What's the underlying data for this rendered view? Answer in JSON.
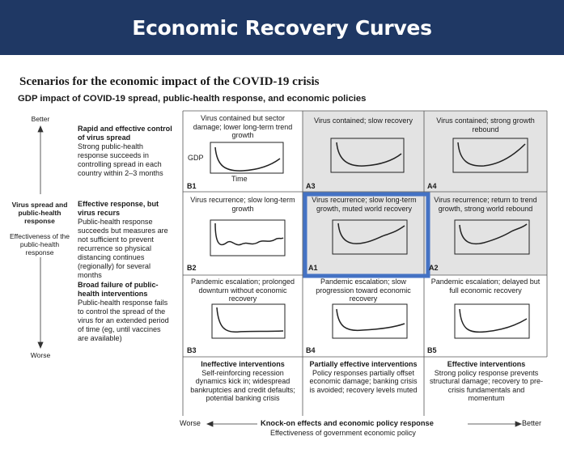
{
  "banner": {
    "title": "Economic Recovery Curves"
  },
  "title": "Scenarios for the economic impact of the COVID-19 crisis",
  "subtitle": "GDP impact of COVID-19 spread, public-health response, and economic policies",
  "y_axis": {
    "top": "Better",
    "bottom": "Worse",
    "label_bold": "Virus spread and public-health response",
    "label_sub": "Effectiveness of the public-health response"
  },
  "rows": [
    {
      "heading": "Rapid and effective control of virus spread",
      "body": "Strong public-health response succeeds in controlling spread in each country within 2–3 months"
    },
    {
      "heading": "Effective response, but virus recurs",
      "body": "Public-health response succeeds but measures are not sufficient to prevent recurrence so physical distancing continues (regionally) for several months"
    },
    {
      "heading": "Broad failure of public-health interventions",
      "body": "Public-health response fails to control the spread of the virus for an extended period of time (eg, until vaccines are available)"
    }
  ],
  "cells": [
    {
      "code": "B1",
      "caption": "Virus contained but sector damage; lower long-term trend growth",
      "shaded": false
    },
    {
      "code": "A3",
      "caption": "Virus contained; slow recovery",
      "shaded": true
    },
    {
      "code": "A4",
      "caption": "Virus contained; strong growth rebound",
      "shaded": true
    },
    {
      "code": "B2",
      "caption": "Virus recurrence; slow long-term growth",
      "shaded": false
    },
    {
      "code": "A1",
      "caption": "Virus recurrence; slow long-term growth, muted world recovery",
      "shaded": true
    },
    {
      "code": "A2",
      "caption": "Virus recurrence; return to trend growth, strong world rebound",
      "shaded": true
    },
    {
      "code": "B3",
      "caption": "Pandemic escalation; prolonged downturn without economic recovery",
      "shaded": false
    },
    {
      "code": "B4",
      "caption": "Pandemic escalation; slow progression toward economic recovery",
      "shaded": false
    },
    {
      "code": "B5",
      "caption": "Pandemic escalation; delayed but full economic recovery",
      "shaded": false
    }
  ],
  "mini_axes": {
    "y": "GDP",
    "x": "Time"
  },
  "columns": [
    {
      "heading": "Ineffective interventions",
      "body": "Self-reinforcing recession dynamics kick in; widespread bankruptcies and credit defaults; potential banking crisis"
    },
    {
      "heading": "Partially effective interventions",
      "body": "Policy responses partially offset economic damage; banking crisis is avoided; recovery levels muted"
    },
    {
      "heading": "Effective interventions",
      "body": "Strong policy response prevents structural damage; recovery to pre-crisis fundamentals and momentum"
    }
  ],
  "x_axis": {
    "left": "Worse",
    "right": "Better",
    "label_bold": "Knock-on effects and economic policy response",
    "label_sub": "Effectiveness of government economic policy"
  },
  "colors": {
    "banner": "#1f3864",
    "shade": "#e3e3e3",
    "highlight": "#4472c4",
    "line": "#222222"
  }
}
